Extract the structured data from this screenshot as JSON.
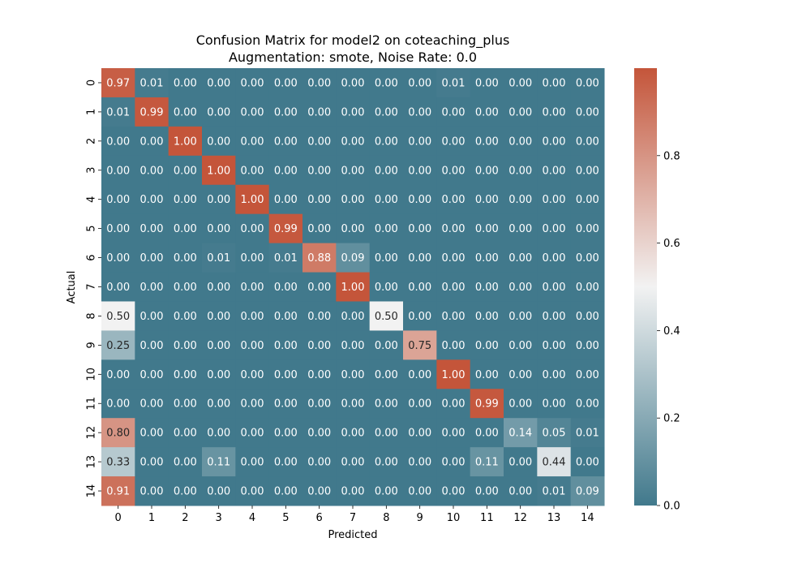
{
  "chart_data": {
    "type": "heatmap",
    "title": "Confusion Matrix for model2 on coteaching_plus",
    "subtitle": "Augmentation: smote, Noise Rate: 0.0",
    "xlabel": "Predicted",
    "ylabel": "Actual",
    "x_categories": [
      "0",
      "1",
      "2",
      "3",
      "4",
      "5",
      "6",
      "7",
      "8",
      "9",
      "10",
      "11",
      "12",
      "13",
      "14"
    ],
    "y_categories": [
      "0",
      "1",
      "2",
      "3",
      "4",
      "5",
      "6",
      "7",
      "8",
      "9",
      "10",
      "11",
      "12",
      "13",
      "14"
    ],
    "values": [
      [
        0.97,
        0.01,
        0.0,
        0.0,
        0.0,
        0.0,
        0.0,
        0.0,
        0.0,
        0.0,
        0.01,
        0.0,
        0.0,
        0.0,
        0.0
      ],
      [
        0.01,
        0.99,
        0.0,
        0.0,
        0.0,
        0.0,
        0.0,
        0.0,
        0.0,
        0.0,
        0.0,
        0.0,
        0.0,
        0.0,
        0.0
      ],
      [
        0.0,
        0.0,
        1.0,
        0.0,
        0.0,
        0.0,
        0.0,
        0.0,
        0.0,
        0.0,
        0.0,
        0.0,
        0.0,
        0.0,
        0.0
      ],
      [
        0.0,
        0.0,
        0.0,
        1.0,
        0.0,
        0.0,
        0.0,
        0.0,
        0.0,
        0.0,
        0.0,
        0.0,
        0.0,
        0.0,
        0.0
      ],
      [
        0.0,
        0.0,
        0.0,
        0.0,
        1.0,
        0.0,
        0.0,
        0.0,
        0.0,
        0.0,
        0.0,
        0.0,
        0.0,
        0.0,
        0.0
      ],
      [
        0.0,
        0.0,
        0.0,
        0.0,
        0.0,
        0.99,
        0.0,
        0.0,
        0.0,
        0.0,
        0.0,
        0.0,
        0.0,
        0.0,
        0.0
      ],
      [
        0.0,
        0.0,
        0.0,
        0.01,
        0.0,
        0.01,
        0.88,
        0.09,
        0.0,
        0.0,
        0.0,
        0.0,
        0.0,
        0.0,
        0.0
      ],
      [
        0.0,
        0.0,
        0.0,
        0.0,
        0.0,
        0.0,
        0.0,
        1.0,
        0.0,
        0.0,
        0.0,
        0.0,
        0.0,
        0.0,
        0.0
      ],
      [
        0.5,
        0.0,
        0.0,
        0.0,
        0.0,
        0.0,
        0.0,
        0.0,
        0.5,
        0.0,
        0.0,
        0.0,
        0.0,
        0.0,
        0.0
      ],
      [
        0.25,
        0.0,
        0.0,
        0.0,
        0.0,
        0.0,
        0.0,
        0.0,
        0.0,
        0.75,
        0.0,
        0.0,
        0.0,
        0.0,
        0.0
      ],
      [
        0.0,
        0.0,
        0.0,
        0.0,
        0.0,
        0.0,
        0.0,
        0.0,
        0.0,
        0.0,
        1.0,
        0.0,
        0.0,
        0.0,
        0.0
      ],
      [
        0.0,
        0.0,
        0.0,
        0.0,
        0.0,
        0.0,
        0.0,
        0.0,
        0.0,
        0.0,
        0.0,
        0.99,
        0.0,
        0.0,
        0.0
      ],
      [
        0.8,
        0.0,
        0.0,
        0.0,
        0.0,
        0.0,
        0.0,
        0.0,
        0.0,
        0.0,
        0.0,
        0.0,
        0.14,
        0.05,
        0.01
      ],
      [
        0.33,
        0.0,
        0.0,
        0.11,
        0.0,
        0.0,
        0.0,
        0.0,
        0.0,
        0.0,
        0.0,
        0.11,
        0.0,
        0.44,
        0.0
      ],
      [
        0.91,
        0.0,
        0.0,
        0.0,
        0.0,
        0.0,
        0.0,
        0.0,
        0.0,
        0.0,
        0.0,
        0.0,
        0.0,
        0.01,
        0.09
      ]
    ],
    "colorbar": {
      "range": [
        0,
        1
      ],
      "ticks": [
        "0.0",
        "0.2",
        "0.4",
        "0.6",
        "0.8"
      ]
    },
    "colors": {
      "low": "#41798c",
      "mid": "#f2f2f2",
      "high": "#c4553a"
    }
  }
}
